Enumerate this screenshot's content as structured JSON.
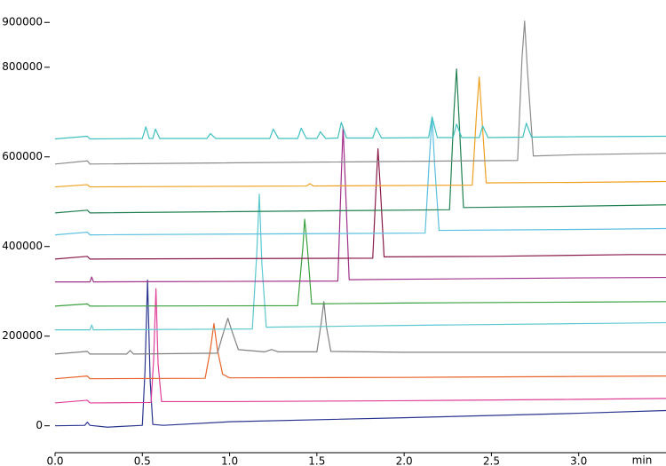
{
  "chart_data": {
    "type": "line",
    "x_label": "min",
    "xlim": [
      0,
      3.5
    ],
    "ylim": [
      -60000,
      950000
    ],
    "xticks": [
      {
        "value": 0,
        "label": "0.0"
      },
      {
        "value": 0.5,
        "label": "0.5"
      },
      {
        "value": 1,
        "label": "1.0"
      },
      {
        "value": 1.5,
        "label": "1.5"
      },
      {
        "value": 2,
        "label": "2.0"
      },
      {
        "value": 2.5,
        "label": "2.5"
      },
      {
        "value": 3,
        "label": "3.0"
      }
    ],
    "yticks": [
      0,
      200000,
      400000,
      600000,
      800000,
      900000
    ],
    "series": [
      {
        "color": "#2a3590",
        "x": [
          0,
          0.17,
          0.185,
          0.2,
          0.3,
          0.5,
          0.515,
          0.53,
          0.545,
          0.56,
          0.62,
          1.0,
          2.0,
          3.0,
          3.5
        ],
        "values": [
          0,
          1000,
          8000,
          1000,
          -3000,
          1000,
          120000,
          325000,
          100000,
          3000,
          1000,
          9000,
          18000,
          28000,
          34000
        ]
      },
      {
        "color": "#e0409a",
        "x": [
          0,
          0.185,
          0.2,
          0.55,
          0.565,
          0.578,
          0.59,
          0.61,
          1.0,
          2.0,
          3.0,
          3.5
        ],
        "values": [
          51000,
          57000,
          51000,
          52000,
          150000,
          306000,
          140000,
          54000,
          54000,
          56000,
          59000,
          61000
        ]
      },
      {
        "color": "#e8642a",
        "x": [
          0,
          0.185,
          0.2,
          0.86,
          0.89,
          0.91,
          0.93,
          0.96,
          1.0,
          2.0,
          3.0,
          3.5
        ],
        "values": [
          105000,
          111000,
          105000,
          106000,
          170000,
          228000,
          170000,
          115000,
          107000,
          108000,
          110000,
          111000
        ]
      },
      {
        "color": "#808080",
        "x": [
          0,
          0.185,
          0.2,
          0.41,
          0.43,
          0.45,
          0.93,
          0.97,
          0.99,
          1.01,
          1.05,
          1.2,
          1.24,
          1.28,
          1.5,
          1.525,
          1.54,
          1.555,
          1.58,
          2.0,
          3.0,
          3.5
        ],
        "values": [
          160000,
          166000,
          160000,
          160000,
          168000,
          160000,
          162000,
          215000,
          240000,
          215000,
          170000,
          165000,
          170000,
          165000,
          165000,
          230000,
          277000,
          220000,
          166000,
          164000,
          164000,
          164000
        ]
      },
      {
        "color": "#5bc8d0",
        "x": [
          0,
          0.2,
          0.21,
          0.22,
          1.13,
          1.155,
          1.17,
          1.185,
          1.21,
          2.0,
          3.0,
          3.5
        ],
        "values": [
          214000,
          214000,
          225000,
          214000,
          216000,
          380000,
          517000,
          360000,
          220000,
          224000,
          228000,
          230000
        ]
      },
      {
        "color": "#3aa040",
        "x": [
          0,
          0.185,
          0.2,
          1.39,
          1.42,
          1.43,
          1.445,
          1.47,
          2.0,
          3.0,
          3.5
        ],
        "values": [
          267000,
          272000,
          267000,
          268000,
          400000,
          461000,
          400000,
          272000,
          274000,
          276000,
          277000
        ]
      },
      {
        "color": "#a0308a",
        "x": [
          0,
          0.2,
          0.21,
          0.22,
          1.62,
          1.64,
          1.65,
          1.665,
          1.685,
          2.0,
          3.0,
          3.5
        ],
        "values": [
          321000,
          321000,
          332000,
          321000,
          323000,
          560000,
          667000,
          520000,
          326000,
          327000,
          330000,
          331000
        ]
      },
      {
        "color": "#8a1a4a",
        "x": [
          0,
          0.185,
          0.2,
          1.82,
          1.84,
          1.85,
          1.865,
          1.885,
          2.5,
          3.3,
          3.5
        ],
        "values": [
          372000,
          378000,
          372000,
          374000,
          540000,
          618000,
          520000,
          377000,
          378000,
          382000,
          382000
        ]
      },
      {
        "color": "#5bc0e0",
        "x": [
          0,
          0.185,
          0.2,
          2.12,
          2.145,
          2.16,
          2.175,
          2.2,
          3.0,
          3.5
        ],
        "values": [
          426000,
          432000,
          426000,
          430000,
          600000,
          689000,
          580000,
          436000,
          438000,
          440000
        ]
      },
      {
        "color": "#208050",
        "x": [
          0,
          0.185,
          0.2,
          2.26,
          2.285,
          2.3,
          2.315,
          2.34,
          3.0,
          3.5
        ],
        "values": [
          475000,
          481000,
          475000,
          482000,
          700000,
          796000,
          680000,
          487000,
          490000,
          493000
        ]
      },
      {
        "color": "#f0a020",
        "x": [
          0,
          0.185,
          0.2,
          1.44,
          1.46,
          1.48,
          2.39,
          2.415,
          2.43,
          2.445,
          2.47,
          3.0,
          3.5
        ],
        "values": [
          533000,
          538000,
          533000,
          535000,
          540000,
          535000,
          537000,
          700000,
          778000,
          690000,
          542000,
          543000,
          545000
        ]
      },
      {
        "color": "#8c8c8c",
        "x": [
          0,
          0.185,
          0.2,
          2.65,
          2.675,
          2.69,
          2.705,
          2.74,
          3.0,
          3.5
        ],
        "values": [
          584000,
          591000,
          584000,
          592000,
          820000,
          903000,
          800000,
          602000,
          605000,
          608000
        ]
      },
      {
        "color": "#40c0c0",
        "x": [
          0,
          0.185,
          0.2,
          0.5,
          0.52,
          0.54,
          0.56,
          0.575,
          0.6,
          0.87,
          0.89,
          0.92,
          1.23,
          1.25,
          1.28,
          1.39,
          1.41,
          1.44,
          1.5,
          1.52,
          1.55,
          1.62,
          1.64,
          1.67,
          1.82,
          1.84,
          1.87,
          2.14,
          2.16,
          2.19,
          2.28,
          2.3,
          2.33,
          2.43,
          2.45,
          2.48,
          2.68,
          2.7,
          2.73,
          3.0,
          3.5
        ],
        "values": [
          640000,
          646000,
          640000,
          641000,
          667000,
          641000,
          641000,
          662000,
          641000,
          641000,
          652000,
          641000,
          641000,
          662000,
          641000,
          641000,
          664000,
          641000,
          641000,
          656000,
          641000,
          642000,
          677000,
          642000,
          642000,
          665000,
          642000,
          643000,
          689000,
          643000,
          643000,
          673000,
          643000,
          643000,
          669000,
          643000,
          644000,
          675000,
          644000,
          645000,
          646000
        ]
      }
    ]
  }
}
